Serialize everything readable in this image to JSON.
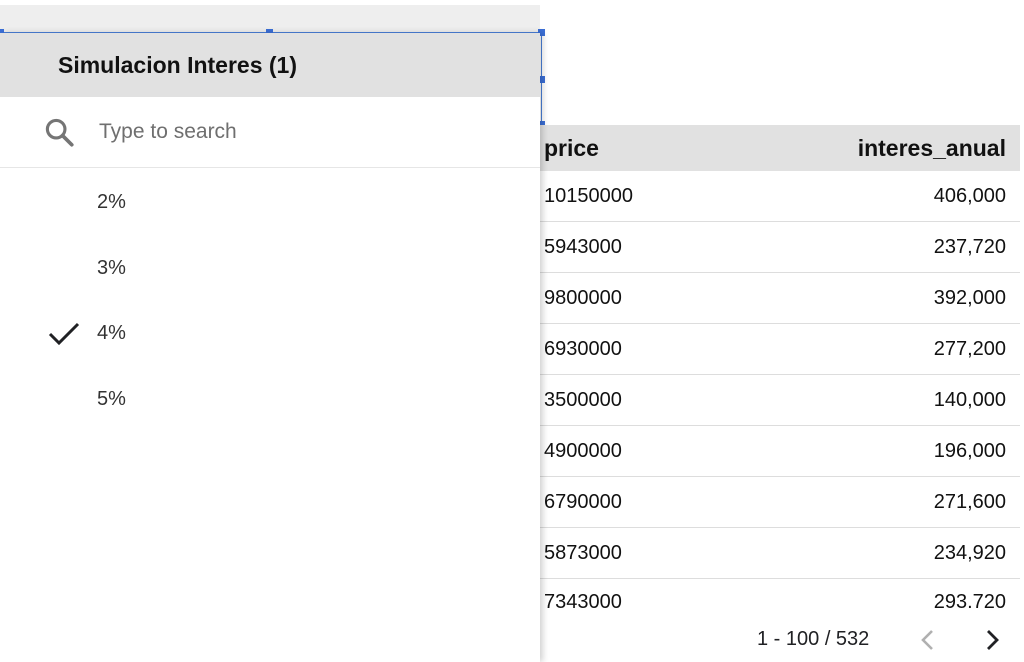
{
  "dropdown": {
    "title": "Simulacion Interes (1)",
    "search": {
      "placeholder": "Type to search",
      "value": ""
    },
    "options": [
      {
        "label": "2%",
        "selected": false
      },
      {
        "label": "3%",
        "selected": false
      },
      {
        "label": "4%",
        "selected": true
      },
      {
        "label": "5%",
        "selected": false
      }
    ]
  },
  "table": {
    "columns": [
      "price",
      "interes_anual"
    ],
    "rows": [
      [
        "10150000",
        "406,000"
      ],
      [
        "5943000",
        "237,720"
      ],
      [
        "9800000",
        "392,000"
      ],
      [
        "6930000",
        "277,200"
      ],
      [
        "3500000",
        "140,000"
      ],
      [
        "4900000",
        "196,000"
      ],
      [
        "6790000",
        "271,600"
      ],
      [
        "5873000",
        "234,920"
      ],
      [
        "7343000",
        "293.720"
      ]
    ]
  },
  "pagination": {
    "range": "1 - 100 / 532"
  },
  "colors": {
    "accent": "#4a7fd8",
    "header_bg": "#e1e1e1"
  },
  "icons": {
    "search": "search-icon",
    "check": "check-icon",
    "prev": "chevron-left-icon",
    "next": "chevron-right-icon"
  }
}
